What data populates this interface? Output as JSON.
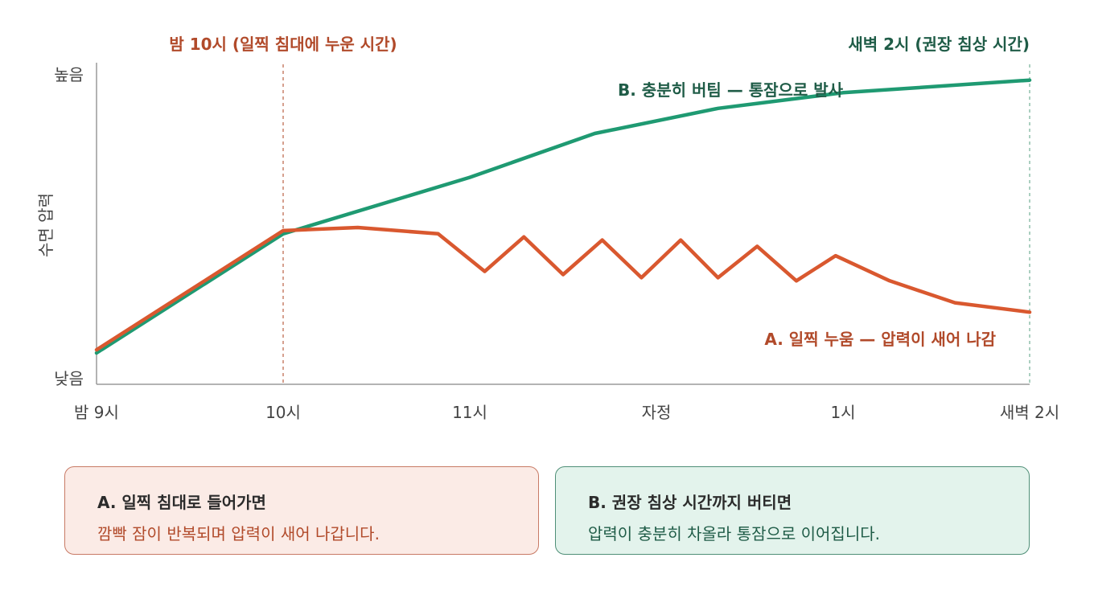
{
  "chart_data": {
    "type": "line",
    "ylabel": "수면 압력",
    "y_ticks": {
      "high": "높음",
      "low": "낮음"
    },
    "x_ticks": [
      "밤 9시",
      "10시",
      "11시",
      "자정",
      "1시",
      "새벽 2시"
    ],
    "xlim": [
      0,
      5
    ],
    "ylim": [
      0,
      100
    ],
    "reference_lines": [
      {
        "x": 1,
        "label": "밤 10시 (일찍 침대에 누운 시간)",
        "color": "#c9806a"
      },
      {
        "x": 5,
        "label": "새벽 2시 (권장 침상 시간)",
        "color": "#8fbfac"
      }
    ],
    "series": [
      {
        "label": "A. 일찍 누움 — 압력이 새어 나감",
        "color": "#d9582f",
        "points": [
          [
            0,
            11
          ],
          [
            1,
            49
          ],
          [
            1.4,
            50
          ],
          [
            1.83,
            48
          ],
          [
            2.08,
            36
          ],
          [
            2.29,
            47
          ],
          [
            2.5,
            35
          ],
          [
            2.71,
            46
          ],
          [
            2.92,
            34
          ],
          [
            3.13,
            46
          ],
          [
            3.33,
            34
          ],
          [
            3.54,
            44
          ],
          [
            3.75,
            33
          ],
          [
            3.96,
            41
          ],
          [
            4.25,
            33
          ],
          [
            4.6,
            26
          ],
          [
            5,
            23
          ]
        ]
      },
      {
        "label": "B. 충분히 버팀 — 통잠으로 발사",
        "color": "#1f9a72",
        "points": [
          [
            0,
            10
          ],
          [
            1,
            48
          ],
          [
            2,
            66
          ],
          [
            2.67,
            80
          ],
          [
            3.33,
            88
          ],
          [
            4,
            93
          ],
          [
            5,
            97
          ]
        ]
      }
    ]
  },
  "boxes": {
    "a": {
      "title": "A. 일찍 침대로 들어가면",
      "body": "깜빡 잠이 반복되며 압력이 새어 나갑니다."
    },
    "b": {
      "title": "B. 권장 침상 시간까지 버티면",
      "body": "압력이 충분히 차올라 통잠으로 이어집니다."
    }
  }
}
